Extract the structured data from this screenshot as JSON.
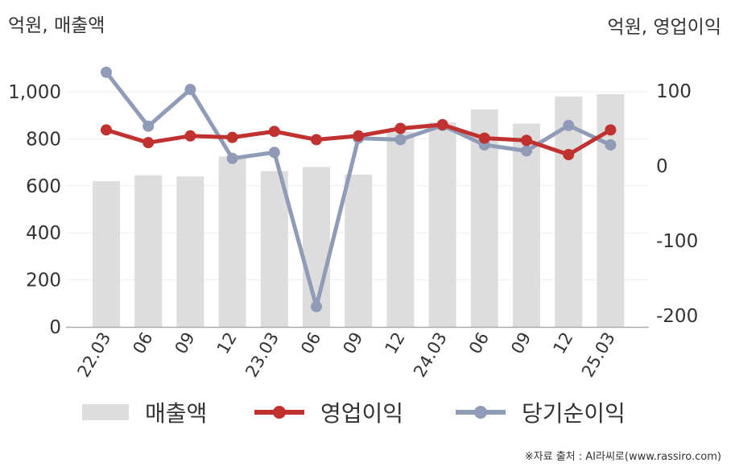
{
  "units": {
    "left": "억원, 매출액",
    "right": "억원, 영업이익"
  },
  "source": "※자료 출처 : AI라씨로(www.rassiro.com)",
  "colors": {
    "revenue": "#dddddd",
    "operating": "#c0312f",
    "net": "#8f9bb7",
    "grid": "#eeeeee",
    "axis": "#aaaaaa",
    "text": "#333333"
  },
  "legend": {
    "revenue": "매출액",
    "operating": "영업이익",
    "net": "당기순이익"
  },
  "chart_data": {
    "type": "bar+line",
    "categories": [
      "22.03",
      "06",
      "09",
      "12",
      "23.03",
      "06",
      "09",
      "12",
      "24.03",
      "06",
      "09",
      "12",
      "25.03"
    ],
    "left_axis": {
      "label": "억원, 매출액",
      "ticks": [
        "0",
        "200",
        "400",
        "600",
        "800",
        "1,000"
      ],
      "range": [
        0,
        1000
      ]
    },
    "right_axis": {
      "label": "억원, 영업이익",
      "ticks": [
        "-200",
        "-100",
        "0",
        "100"
      ],
      "range": [
        -200,
        100
      ]
    },
    "series": [
      {
        "name": "매출액",
        "type": "bar",
        "axis": "left",
        "values": [
          620,
          645,
          640,
          725,
          663,
          680,
          648,
          830,
          870,
          925,
          865,
          980,
          990
        ]
      },
      {
        "name": "영업이익",
        "type": "line",
        "axis": "right",
        "values": [
          48,
          31,
          40,
          38,
          46,
          35,
          40,
          50,
          55,
          37,
          34,
          15,
          48
        ]
      },
      {
        "name": "당기순이익",
        "type": "line",
        "axis": "right",
        "values": [
          125,
          53,
          102,
          10,
          18,
          -188,
          37,
          35,
          54,
          28,
          20,
          54,
          28
        ]
      }
    ],
    "grid": true,
    "legend_position": "bottom"
  }
}
